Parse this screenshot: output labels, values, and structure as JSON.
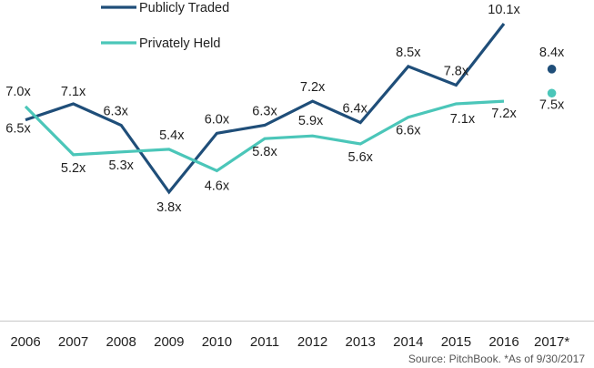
{
  "chart_data": {
    "type": "line",
    "categories": [
      "2006",
      "2007",
      "2008",
      "2009",
      "2010",
      "2011",
      "2012",
      "2013",
      "2014",
      "2015",
      "2016",
      "2017*"
    ],
    "series": [
      {
        "name": "Publicly Traded",
        "color": "#1f4e79",
        "values": [
          6.5,
          7.1,
          6.3,
          3.8,
          6.0,
          6.3,
          7.2,
          6.4,
          8.5,
          7.8,
          10.1,
          8.4
        ],
        "labels": [
          "6.5x",
          "7.1x",
          "6.3x",
          "3.8x",
          "6.0x",
          "6.3x",
          "7.2x",
          "6.4x",
          "8.5x",
          "7.8x",
          "10.1x",
          "8.4x"
        ],
        "last_as_marker": true
      },
      {
        "name": "Privately Held",
        "color": "#4bc6b9",
        "values": [
          7.0,
          5.2,
          5.3,
          5.4,
          4.6,
          5.8,
          5.9,
          5.6,
          6.6,
          7.1,
          7.2,
          7.5
        ],
        "labels": [
          "7.0x",
          "5.2x",
          "5.3x",
          "5.4x",
          "4.6x",
          "5.8x",
          "5.9x",
          "5.6x",
          "6.6x",
          "7.1x",
          "7.2x",
          "7.5x"
        ],
        "last_as_marker": true
      }
    ],
    "legend_position": "top-left",
    "grid": false,
    "ylim": [
      0,
      11.5
    ]
  },
  "source_note": "Source: PitchBook. *As of 9/30/2017"
}
